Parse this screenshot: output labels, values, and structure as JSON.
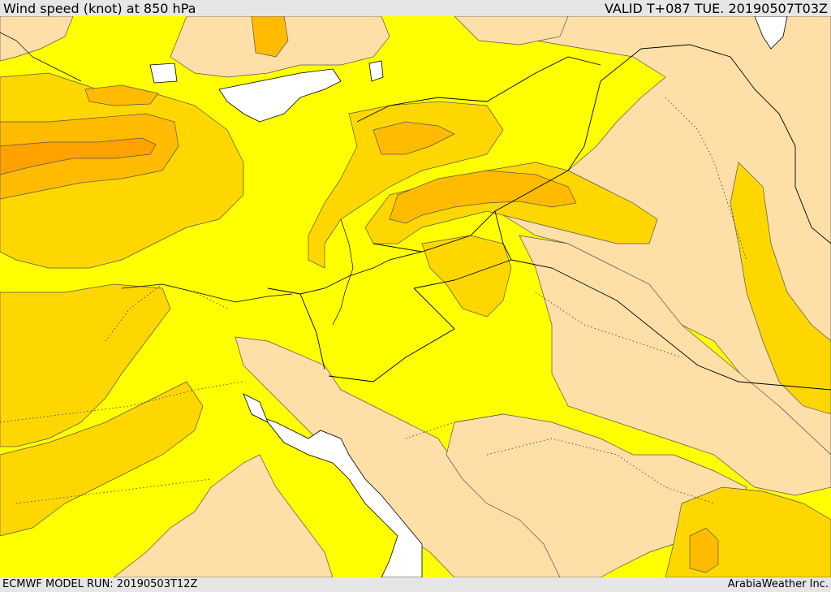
{
  "header": {
    "title": "Wind speed (knot) at 850 hPa",
    "valid_time": "VALID T+087 TUE. 20190507T03Z"
  },
  "footer": {
    "model_run": "ECMWF MODEL RUN: 20190503T12Z",
    "credit": "ArabiaWeather Inc."
  },
  "colors": {
    "background_bar": "#e6e6e6",
    "water": "#ffffff",
    "band_low": "#ffdfa8",
    "band_mid": "#ffff00",
    "band_high": "#ffd700",
    "band_higher": "#ffbb00",
    "band_highest": "#ffa200",
    "contour_line": "#555555",
    "border_line": "#000000"
  }
}
